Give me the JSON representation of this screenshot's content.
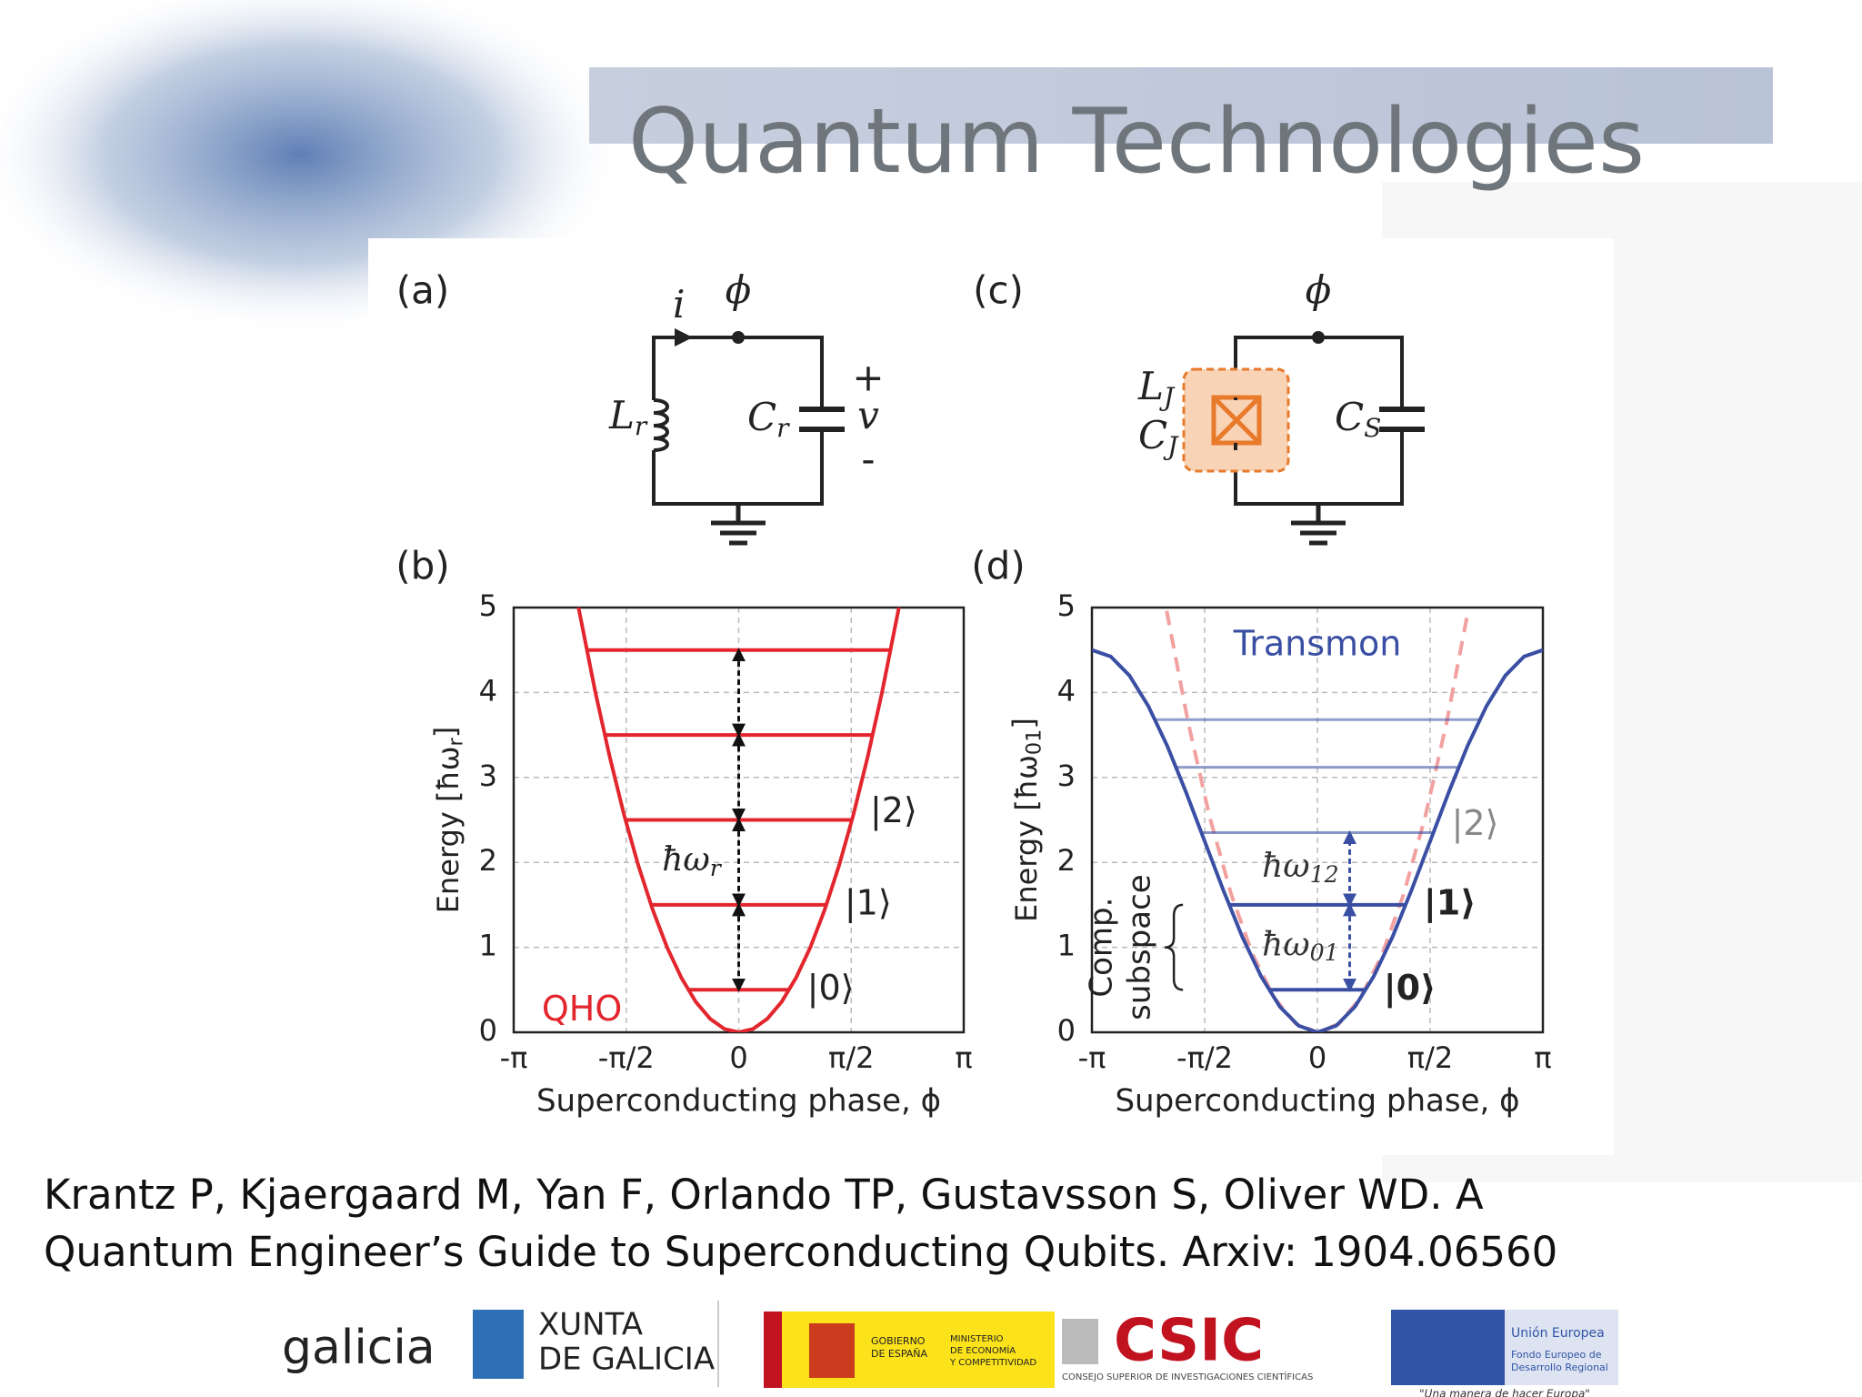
{
  "header": {
    "title": "Quantum Technologies"
  },
  "figure": {
    "panel_a": {
      "label": "(a)",
      "current": "i",
      "phi": "ϕ",
      "inductor": {
        "base": "L",
        "sub": "r"
      },
      "capacitor": {
        "base": "C",
        "sub": "r"
      },
      "plus": "+",
      "voltage": "v",
      "minus": "-"
    },
    "panel_c": {
      "label": "(c)",
      "phi": "ϕ",
      "junction_l": {
        "base": "L",
        "sub": "J"
      },
      "junction_c": {
        "base": "C",
        "sub": "J"
      },
      "capacitor": {
        "base": "C",
        "sub": "S"
      }
    },
    "panel_b": {
      "label": "(b)",
      "ylabel": {
        "base": "Energy [ħω",
        "sub": "r",
        "close": "]"
      },
      "xlabel": "Superconducting phase, ϕ",
      "grid": true,
      "xlim": [
        -3.1416,
        3.1416
      ],
      "ylim": [
        0,
        5
      ],
      "yticks": [
        0,
        1,
        2,
        3,
        4,
        5
      ],
      "xticks": [
        {
          "value": -3.1416,
          "label": "-π"
        },
        {
          "value": -1.5708,
          "label": "-π/2"
        },
        0,
        {
          "value": 1.5708,
          "label": "π/2"
        },
        {
          "value": 3.1416,
          "label": "π"
        }
      ],
      "potential": {
        "x": [
          -2.236,
          -2.0,
          -1.8,
          -1.6,
          -1.4,
          -1.2,
          -1.0,
          -0.8,
          -0.6,
          -0.4,
          -0.2,
          0,
          0.2,
          0.4,
          0.6,
          0.8,
          1.0,
          1.2,
          1.4,
          1.6,
          1.8,
          2.0,
          2.236
        ],
        "y": [
          5,
          4,
          3.24,
          2.56,
          1.96,
          1.44,
          1,
          0.64,
          0.36,
          0.16,
          0.04,
          0,
          0.04,
          0.16,
          0.36,
          0.64,
          1,
          1.44,
          1.96,
          2.56,
          3.24,
          4,
          5
        ]
      },
      "levels": [
        0.5,
        1.5,
        2.5,
        3.5,
        4.5
      ],
      "state_labels": [
        "|0⟩",
        "|1⟩",
        "|2⟩"
      ],
      "spacing_label": {
        "base": "ħω",
        "sub": "r"
      },
      "model_label": "QHO"
    },
    "panel_d": {
      "label": "(d)",
      "ylabel": {
        "base": "Energy [ħω",
        "sub": "01",
        "close": "]"
      },
      "xlabel": "Superconducting phase, ϕ",
      "grid": true,
      "xlim": [
        -3.1416,
        3.1416
      ],
      "ylim": [
        0,
        5
      ],
      "yticks": [
        0,
        1,
        2,
        3,
        4,
        5
      ],
      "xticks": [
        {
          "value": -3.1416,
          "label": "-π"
        },
        {
          "value": -1.5708,
          "label": "-π/2"
        },
        0,
        {
          "value": 1.5708,
          "label": "π/2"
        },
        {
          "value": 3.1416,
          "label": "π"
        }
      ],
      "potential": {
        "x": [
          -3.142,
          -2.88,
          -2.618,
          -2.356,
          -2.094,
          -1.833,
          -1.571,
          -1.309,
          -1.047,
          -0.785,
          -0.524,
          -0.262,
          0,
          0.262,
          0.524,
          0.785,
          1.047,
          1.309,
          1.571,
          1.833,
          2.094,
          2.356,
          2.618,
          2.88,
          3.142
        ],
        "y": [
          4.5,
          4.423,
          4.199,
          3.841,
          3.375,
          2.832,
          2.25,
          1.668,
          1.125,
          0.659,
          0.302,
          0.077,
          0,
          0.077,
          0.302,
          0.659,
          1.125,
          1.668,
          2.25,
          2.832,
          3.375,
          3.841,
          4.199,
          4.423,
          4.5
        ]
      },
      "harmonic": {
        "x": [
          -2.1,
          -1.8,
          -1.5,
          -1.2,
          -0.9,
          -0.6,
          -0.3,
          0,
          0.3,
          0.6,
          0.9,
          1.2,
          1.5,
          1.8,
          2.1
        ],
        "y": [
          4.961,
          3.645,
          2.531,
          1.62,
          0.911,
          0.405,
          0.101,
          0,
          0.101,
          0.405,
          0.911,
          1.62,
          2.531,
          3.645,
          4.961
        ]
      },
      "levels": [
        0.5,
        1.5,
        2.35,
        3.12,
        3.68
      ],
      "state_labels": [
        "|0⟩",
        "|1⟩",
        "|2⟩"
      ],
      "spacing_labels": [
        {
          "base": "ħω",
          "sub": "01"
        },
        {
          "base": "ħω",
          "sub": "12"
        }
      ],
      "brace_label": [
        "Comp.",
        "subspace"
      ],
      "model_label": "Transmon"
    }
  },
  "citation": [
    "Krantz P, Kjaergaard M, Yan F, Orlando TP, Gustavsson S, Oliver WD. A",
    "Quantum Engineer’s Guide to Superconducting Qubits. Arxiv: 1904.06560"
  ],
  "logos": {
    "galicia": "galicia",
    "xunta": [
      "XUNTA",
      "DE GALICIA"
    ],
    "gobierno": [
      "GOBIERNO",
      "DE ESPAÑA"
    ],
    "ministerio": [
      "MINISTERIO",
      "DE ECONOMÍA",
      "Y COMPETITIVIDAD"
    ],
    "csic": "CSIC",
    "csic_name": "CONSEJO SUPERIOR DE INVESTIGACIONES CIENTÍFICAS",
    "eu": [
      "Unión Europea",
      "Fondo Europeo de",
      "Desarrollo Regional"
    ],
    "eu_motto": "\"Una manera de hacer Europa\""
  }
}
